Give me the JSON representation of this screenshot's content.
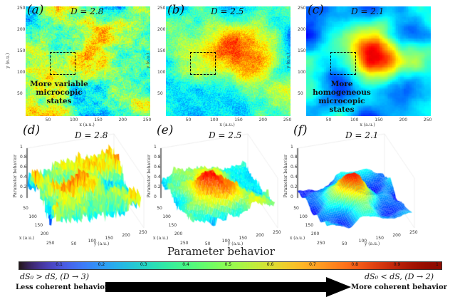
{
  "chart_data": [
    {
      "type": "heatmap",
      "panel": "(a)",
      "title": "D = 2.8",
      "xlabel": "x (a.u.)",
      "ylabel": "y (a.u.)",
      "xticks": [
        50,
        100,
        150,
        200,
        250
      ],
      "yticks": [
        50,
        100,
        150,
        200,
        250
      ],
      "xlim": [
        1,
        256
      ],
      "ylim": [
        1,
        256
      ],
      "annotation": "More variable microcopic states",
      "highlight_box": {
        "x": [
          50,
          100
        ],
        "y": [
          100,
          150
        ]
      },
      "fractal_dimension": 2.8
    },
    {
      "type": "heatmap",
      "panel": "(b)",
      "title": "D = 2.5",
      "xlabel": "x (a.u.)",
      "ylabel": "y (a.u.)",
      "xticks": [
        50,
        100,
        150,
        200,
        250
      ],
      "yticks": [
        50,
        100,
        150,
        200,
        250
      ],
      "xlim": [
        1,
        256
      ],
      "ylim": [
        1,
        256
      ],
      "highlight_box": {
        "x": [
          50,
          100
        ],
        "y": [
          100,
          150
        ]
      },
      "fractal_dimension": 2.5
    },
    {
      "type": "heatmap",
      "panel": "(c)",
      "title": "D = 2.1",
      "xlabel": "x (a.u.)",
      "ylabel": "y (a.u.)",
      "xticks": [
        50,
        100,
        150,
        200,
        250
      ],
      "yticks": [
        50,
        100,
        150,
        200,
        250
      ],
      "xlim": [
        1,
        256
      ],
      "ylim": [
        1,
        256
      ],
      "annotation": "More homogeneous microcopic states",
      "highlight_box": {
        "x": [
          50,
          100
        ],
        "y": [
          100,
          150
        ]
      },
      "fractal_dimension": 2.1
    },
    {
      "type": "surface",
      "panel": "(d)",
      "title": "D = 2.8",
      "xlabel": "x (a.u.)",
      "ylabel": "y (a.u.)",
      "zlabel": "Parameter behavior",
      "zticks": [
        0,
        0.2,
        0.4,
        0.6,
        0.8,
        1
      ],
      "xticks": [
        50,
        100,
        150,
        200,
        250
      ],
      "yticks": [
        50,
        100,
        150,
        200,
        250
      ],
      "fractal_dimension": 2.8
    },
    {
      "type": "surface",
      "panel": "(e)",
      "title": "D = 2.5",
      "xlabel": "x (a.u.)",
      "ylabel": "y (a.u.)",
      "zlabel": "Parameter behavior",
      "zticks": [
        0,
        0.2,
        0.4,
        0.6,
        0.8,
        1
      ],
      "xticks": [
        50,
        100,
        150,
        200,
        250
      ],
      "yticks": [
        50,
        100,
        150,
        200,
        250
      ],
      "fractal_dimension": 2.5
    },
    {
      "type": "surface",
      "panel": "(f)",
      "title": "D = 2.1",
      "xlabel": "x (a.u.)",
      "ylabel": "y (a.u.)",
      "zlabel": "Parameter behavior",
      "zticks": [
        0,
        0.2,
        0.4,
        0.6,
        0.8,
        1
      ],
      "xticks": [
        50,
        100,
        150,
        200,
        250
      ],
      "yticks": [
        50,
        100,
        150,
        200,
        250
      ],
      "fractal_dimension": 2.1
    }
  ],
  "colorbar": {
    "title": "Parameter behavior",
    "colormap": "turbo",
    "ticks": [
      "0.1",
      "0.2",
      "0.3",
      "0.4",
      "0.5",
      "0.6",
      "0.7",
      "0.8",
      "0.9",
      "1"
    ],
    "range": [
      0,
      1
    ]
  },
  "arrow": {
    "left_eq": "dS₀ > dS,  (D → 3)",
    "left_label": "Less coherent behavior",
    "right_eq": "dS₀ < dS, (D → 2)",
    "right_label": "More coherent behavior"
  }
}
